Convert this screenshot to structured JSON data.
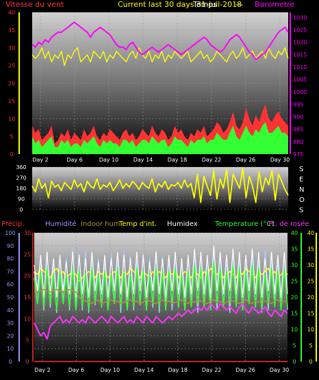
{
  "colors": {
    "wind_axis": "#ff3333",
    "baro_axis": "#ff00ff",
    "title": "#ffff00",
    "humidity": "#9999ff",
    "indoor_hum": "#b09040",
    "temp_int": "#ffff00",
    "humidex": "#ffffff",
    "temperature": "#33ff33",
    "dewpoint": "#ff33ff",
    "precip": "#ff3333",
    "light_blue": "#aaccff",
    "right_axis": "#ffff00"
  },
  "chart_data": [
    {
      "type": "line",
      "title": "Current last 30 days 31-juil-2018",
      "title_overlay": "Temps",
      "dash": "---",
      "x_ticks": [
        "Day 2",
        "Day 6",
        "Day 10",
        "Day 14",
        "Day 18",
        "Day 22",
        "Day 26",
        "Day 30"
      ],
      "y_left": {
        "label": "Vitesse du vent",
        "ticks": [
          0,
          5,
          10,
          15,
          20,
          25,
          30,
          35,
          40
        ],
        "range": [
          0,
          40
        ]
      },
      "y_right": {
        "label": "Barometre",
        "ticks": [
          975,
          980,
          985,
          990,
          995,
          1000,
          1005,
          1010,
          1015,
          1020,
          1025,
          1030
        ],
        "range": [
          975,
          1032
        ]
      },
      "series": [
        {
          "name": "Barometre",
          "axis": "right",
          "values": [
            1019,
            1018,
            1020,
            1019,
            1021,
            1020,
            1022,
            1023,
            1024,
            1024,
            1025,
            1026,
            1027,
            1028,
            1027,
            1026,
            1025,
            1024,
            1022,
            1024,
            1025,
            1026,
            1025,
            1024,
            1023,
            1021,
            1019,
            1018,
            1018,
            1017,
            1019,
            1020,
            1018,
            1016,
            1015,
            1016,
            1017,
            1018,
            1017,
            1016,
            1017,
            1018,
            1019,
            1018,
            1017,
            1016,
            1015,
            1016,
            1017,
            1018,
            1019,
            1020,
            1021,
            1022,
            1021,
            1019,
            1018,
            1017,
            1016,
            1017,
            1019,
            1021,
            1022,
            1023,
            1022,
            1020,
            1018,
            1016,
            1015,
            1013,
            1014,
            1015,
            1016,
            1018,
            1020,
            1022,
            1024,
            1025,
            1026,
            1024
          ]
        },
        {
          "name": "",
          "axis": "left",
          "values": [
            28,
            27,
            28,
            30,
            27,
            29,
            26,
            28,
            27,
            29,
            25,
            28,
            27,
            29,
            30,
            26,
            27,
            28,
            26,
            29,
            28,
            27,
            29,
            26,
            28,
            27,
            29,
            28,
            27,
            26,
            28,
            29,
            27,
            30,
            28,
            27,
            29,
            26,
            28,
            27,
            29,
            26,
            28,
            27,
            29,
            28,
            27,
            28,
            29,
            26,
            27,
            28,
            29,
            27,
            28,
            26,
            27,
            29,
            28,
            27,
            26,
            28,
            29,
            27,
            28,
            30,
            27,
            28,
            29,
            27,
            28,
            29,
            27,
            30,
            28,
            27,
            29,
            28,
            30,
            27
          ]
        },
        {
          "name": "",
          "axis": "left",
          "values": [
            8,
            6,
            7,
            4,
            5,
            6,
            8,
            3,
            4,
            6,
            5,
            7,
            4,
            6,
            5,
            4,
            7,
            5,
            6,
            8,
            5,
            4,
            6,
            5,
            7,
            6,
            5,
            4,
            6,
            7,
            5,
            6,
            4,
            5,
            7,
            6,
            5,
            8,
            6,
            5,
            7,
            6,
            4,
            5,
            8,
            6,
            7,
            5,
            4,
            6,
            5,
            7,
            6,
            8,
            5,
            6,
            7,
            9,
            8,
            6,
            7,
            9,
            12,
            8,
            7,
            9,
            13,
            10,
            8,
            11,
            9,
            12,
            14,
            10,
            9,
            11,
            12,
            10,
            9,
            8
          ]
        },
        {
          "name": "",
          "axis": "left",
          "values": [
            5,
            3,
            4,
            2,
            3,
            4,
            5,
            2,
            2,
            4,
            3,
            4,
            2,
            3,
            3,
            2,
            4,
            3,
            4,
            5,
            3,
            2,
            4,
            3,
            4,
            3,
            3,
            2,
            4,
            4,
            3,
            4,
            2,
            3,
            4,
            4,
            3,
            5,
            4,
            3,
            4,
            4,
            2,
            3,
            5,
            4,
            4,
            3,
            2,
            4,
            3,
            4,
            4,
            5,
            3,
            4,
            4,
            6,
            5,
            4,
            4,
            6,
            8,
            5,
            4,
            6,
            8,
            6,
            5,
            7,
            6,
            8,
            9,
            6,
            6,
            7,
            8,
            6,
            6,
            5
          ]
        }
      ]
    },
    {
      "type": "line",
      "title": "",
      "x_ticks": [],
      "y_left": {
        "label": "",
        "ticks": [
          0,
          90,
          180,
          270,
          360
        ],
        "range": [
          0,
          360
        ]
      },
      "y_right": {
        "label": "SENOS",
        "letters": [
          "S",
          "E",
          "N",
          "O",
          "S"
        ]
      },
      "series": [
        {
          "name": "",
          "axis": "left",
          "values": [
            200,
            150,
            260,
            180,
            220,
            100,
            240,
            190,
            210,
            160,
            230,
            200,
            170,
            250,
            190,
            220,
            150,
            240,
            200,
            180,
            260,
            170,
            210,
            190,
            230,
            160,
            200,
            250,
            180,
            220,
            190,
            240,
            210,
            170,
            230,
            200,
            180,
            260,
            150,
            220,
            190,
            240,
            170,
            210,
            200,
            230,
            180,
            250,
            190,
            220,
            100,
            300,
            60,
            280,
            200,
            120,
            330,
            90,
            260,
            180,
            340,
            60,
            300,
            240,
            180,
            350,
            100,
            280,
            200,
            60,
            320,
            150,
            270,
            210,
            330,
            80,
            300,
            240,
            170,
            120
          ]
        }
      ]
    },
    {
      "type": "line",
      "title": "",
      "legend": [
        "Précip.",
        "Humidité",
        "Indoor hum",
        "Temp d'int.",
        "Humidex",
        "Temperature (°C)",
        "Pt. de rosée"
      ],
      "x_ticks": [
        "Day 2",
        "Day 6",
        "Day 10",
        "Day 14",
        "Day 18",
        "Day 22",
        "Day 26",
        "Day 30"
      ],
      "y_left_outer": {
        "ticks": [
          0,
          10,
          20,
          30,
          40,
          50,
          60,
          70,
          80,
          90,
          100
        ],
        "range": [
          0,
          100
        ]
      },
      "y_left_inner": {
        "ticks": [
          0,
          5,
          10,
          15,
          20,
          25,
          30
        ],
        "range": [
          0,
          30
        ]
      },
      "y_right_inner": {
        "ticks": [
          0,
          5,
          10,
          15,
          20,
          25,
          30,
          35,
          40
        ],
        "range": [
          0,
          40
        ]
      },
      "y_right_outer": {
        "ticks": [
          0,
          5,
          10,
          15,
          20,
          25,
          30,
          35,
          40
        ],
        "range": [
          0,
          40
        ]
      },
      "series": [
        {
          "name": "Humidité",
          "axis": "outer",
          "values": [
            70,
            45,
            80,
            40,
            85,
            42,
            78,
            38,
            82,
            45,
            80,
            40,
            88,
            42,
            84,
            40,
            86,
            38,
            82,
            44,
            80,
            42,
            78,
            40,
            84,
            45,
            80,
            38,
            86,
            42,
            82,
            40,
            78,
            44,
            84,
            40,
            80,
            42,
            86,
            38,
            82,
            45,
            80,
            40,
            84,
            42,
            78,
            40,
            82,
            44,
            86,
            38,
            84,
            42,
            80,
            45,
            88,
            40,
            84,
            42,
            80,
            38,
            86,
            44,
            82,
            40,
            78,
            45,
            84,
            42,
            80,
            38,
            86,
            40,
            82,
            44,
            80,
            42,
            84,
            40
          ]
        },
        {
          "name": "Temp d'int.",
          "axis": "right",
          "values": [
            28,
            27,
            29,
            28,
            27,
            26,
            28,
            29,
            27,
            28,
            26,
            27,
            28,
            27,
            25,
            26,
            27,
            28,
            27,
            26,
            28,
            27,
            28,
            26,
            27,
            28,
            27,
            26,
            28,
            27,
            29,
            28,
            27,
            26,
            28,
            27,
            26,
            28,
            27,
            28,
            27,
            26,
            28,
            27,
            28,
            26,
            27,
            28,
            27,
            26,
            28,
            27,
            26,
            28,
            27,
            29,
            28,
            27,
            28,
            26,
            27,
            28,
            27,
            26,
            28,
            27,
            29,
            28,
            27,
            26,
            28,
            27,
            28,
            29,
            27,
            28,
            26,
            27,
            28,
            27
          ]
        },
        {
          "name": "Humidex",
          "axis": "right",
          "values": [
            30,
            22,
            33,
            20,
            34,
            21,
            32,
            20,
            33,
            22,
            31,
            21,
            34,
            20,
            33,
            21,
            32,
            20,
            34,
            22,
            31,
            21,
            33,
            20,
            32,
            22,
            34,
            21,
            33,
            20,
            32,
            21,
            34,
            22,
            33,
            20,
            31,
            22,
            34,
            21,
            32,
            20,
            33,
            22,
            34,
            21,
            32,
            20,
            33,
            21,
            35,
            22,
            34,
            21,
            33,
            20,
            36,
            22,
            34,
            21,
            33,
            22,
            35,
            21,
            34,
            20,
            33,
            22,
            35,
            21,
            34,
            20,
            32,
            22,
            34,
            21,
            33,
            20,
            34,
            21
          ]
        },
        {
          "name": "Temperature (°C)",
          "axis": "right",
          "values": [
            26,
            18,
            28,
            17,
            29,
            18,
            27,
            16,
            28,
            18,
            27,
            17,
            29,
            16,
            28,
            17,
            27,
            16,
            29,
            18,
            27,
            17,
            28,
            16,
            27,
            18,
            29,
            17,
            28,
            16,
            27,
            17,
            29,
            18,
            28,
            16,
            27,
            18,
            29,
            17,
            28,
            16,
            28,
            18,
            29,
            17,
            27,
            16,
            28,
            17,
            30,
            18,
            29,
            17,
            28,
            16,
            31,
            18,
            29,
            17,
            28,
            18,
            30,
            17,
            29,
            16,
            28,
            18,
            30,
            17,
            29,
            16,
            27,
            18,
            29,
            17,
            28,
            16,
            29,
            17
          ]
        },
        {
          "name": "Pt. de rosée",
          "axis": "right",
          "values": [
            12,
            10,
            8,
            9,
            7,
            11,
            12,
            13,
            14,
            12,
            13,
            12,
            14,
            13,
            12,
            13,
            12,
            14,
            13,
            12,
            13,
            14,
            13,
            12,
            14,
            13,
            12,
            13,
            14,
            12,
            13,
            12,
            14,
            13,
            12,
            14,
            13,
            12,
            14,
            13,
            12,
            13,
            14,
            13,
            14,
            15,
            14,
            15,
            16,
            15,
            16,
            17,
            16,
            17,
            16,
            18,
            17,
            16,
            18,
            17,
            16,
            17,
            16,
            15,
            17,
            18,
            16,
            15,
            17,
            16,
            15,
            16,
            17,
            15,
            14,
            16,
            15,
            14,
            16,
            15
          ]
        },
        {
          "name": "Indoor hum",
          "axis": "outer",
          "values": [
            55,
            54,
            55,
            56,
            55,
            54,
            55,
            56,
            55,
            54,
            55,
            56,
            55,
            54,
            50,
            48,
            47,
            46,
            45,
            47,
            48,
            45,
            46,
            47,
            48,
            46,
            47,
            45,
            46,
            47,
            48,
            46,
            47,
            45,
            46,
            48,
            47,
            46,
            45,
            47,
            48,
            46,
            47,
            45,
            46,
            47,
            48,
            46,
            45,
            47,
            46,
            48,
            47,
            46,
            45,
            47,
            48,
            46,
            47,
            45,
            46,
            48,
            47,
            46,
            45,
            47,
            48,
            46,
            45,
            47,
            46,
            48,
            47,
            46,
            45,
            47,
            48,
            46,
            47,
            46
          ]
        },
        {
          "name": "Précip.",
          "axis": "inner",
          "values": [
            0,
            0,
            0,
            0,
            0,
            0,
            0,
            0,
            0,
            0,
            0,
            0,
            0,
            0,
            0,
            0,
            0,
            0,
            0,
            0,
            0,
            0,
            0,
            0,
            0,
            0,
            0,
            0,
            0,
            0,
            0,
            0,
            0,
            0,
            0,
            0,
            0,
            0,
            0,
            0,
            0,
            0,
            0,
            0,
            0,
            0,
            0,
            0,
            0,
            0,
            0,
            0,
            0,
            0,
            0,
            0,
            0,
            0,
            0,
            0,
            0,
            0,
            0,
            0,
            0,
            0,
            0,
            0,
            0,
            0,
            0,
            0,
            0,
            0,
            0,
            0,
            0,
            0,
            0,
            0
          ]
        }
      ]
    }
  ]
}
